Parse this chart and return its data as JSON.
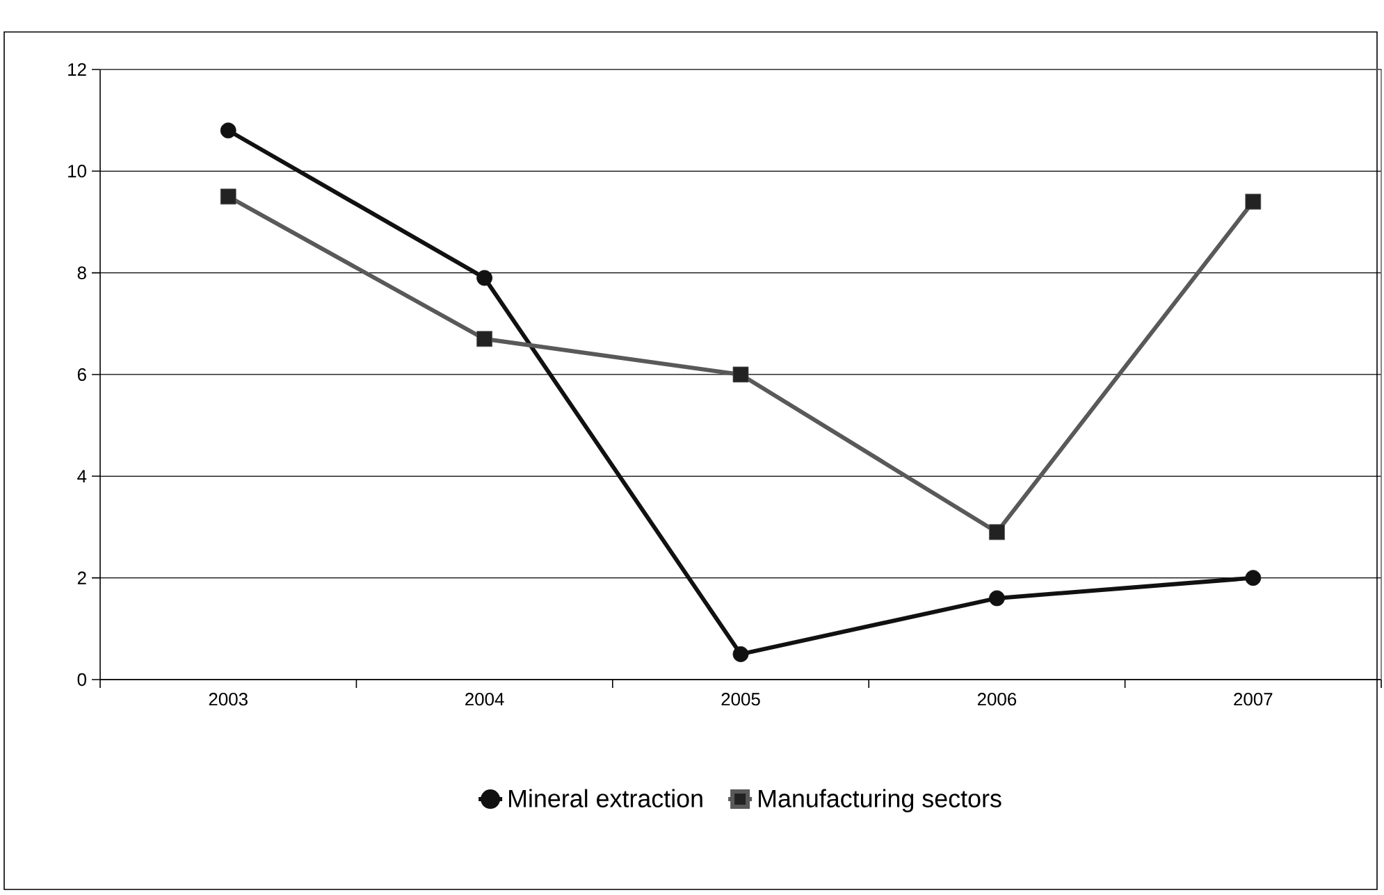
{
  "chart_data": {
    "type": "line",
    "categories": [
      "2003",
      "2004",
      "2005",
      "2006",
      "2007"
    ],
    "series": [
      {
        "name": "Mineral extraction",
        "color": "#111111",
        "marker": "circle",
        "values": [
          10.8,
          7.9,
          0.5,
          1.6,
          2.0
        ]
      },
      {
        "name": "Manufacturing sectors",
        "color": "#595959",
        "marker": "square",
        "values": [
          9.5,
          6.7,
          6.0,
          2.9,
          9.4
        ]
      }
    ],
    "ylim": [
      0,
      12
    ],
    "yticks": [
      0,
      2,
      4,
      6,
      8,
      10,
      12
    ],
    "grid": "y",
    "legend": "bottom",
    "line_style": "solid"
  }
}
